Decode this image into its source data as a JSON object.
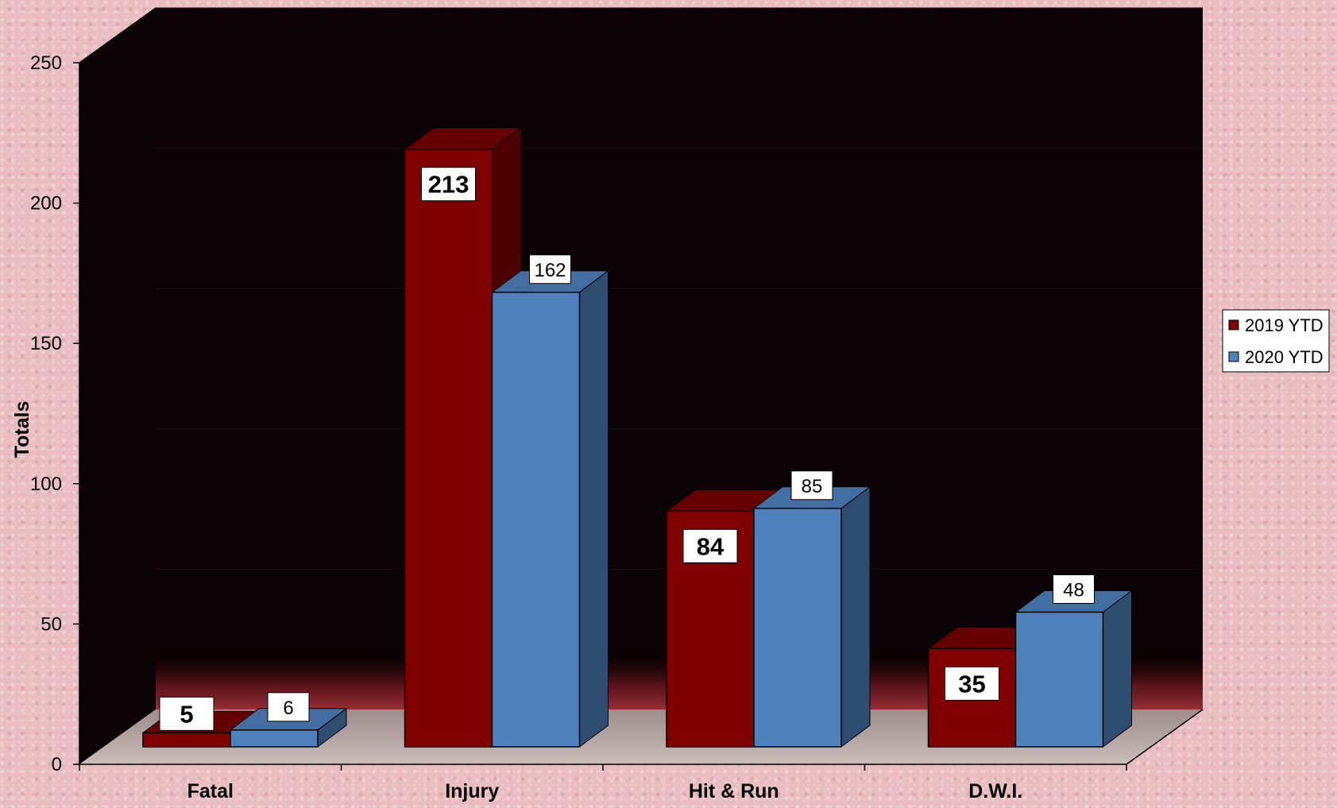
{
  "chart_data": {
    "type": "bar",
    "title": "",
    "xlabel": "",
    "ylabel": "Totals",
    "ylim": [
      0,
      250
    ],
    "yticks": [
      0,
      50,
      100,
      150,
      200,
      250
    ],
    "grid": false,
    "legend_position": "right",
    "categories": [
      "Fatal",
      "Injury",
      "Hit & Run",
      "D.W.I."
    ],
    "series": [
      {
        "name": "2019 YTD",
        "values": [
          5,
          213,
          84,
          35
        ],
        "color": "#800000"
      },
      {
        "name": "2020 YTD",
        "values": [
          6,
          162,
          85,
          48
        ],
        "color": "#4f81bd"
      }
    ],
    "colors": {
      "plot_background": "#0a0204",
      "floor": "#b8a8a6",
      "axis": "#000000"
    }
  }
}
